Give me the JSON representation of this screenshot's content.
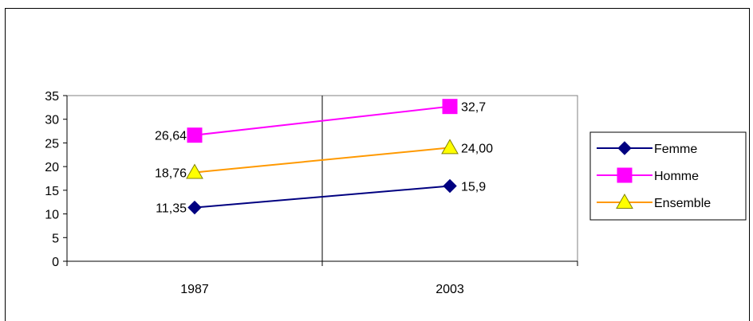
{
  "chart_data": {
    "type": "line",
    "title": "",
    "xlabel": "",
    "ylabel": "",
    "categories": [
      "1987",
      "2003"
    ],
    "ylim": [
      0,
      35
    ],
    "yticks": [
      "0",
      "5",
      "10",
      "15",
      "20",
      "25",
      "30",
      "35"
    ],
    "ytick_values": [
      0,
      5,
      10,
      15,
      20,
      25,
      30,
      35
    ],
    "grid": "vertical divider between categories",
    "legend_position": "right",
    "series": [
      {
        "name": "Femme",
        "values": [
          11.35,
          15.9
        ],
        "labels": [
          "11,35",
          "15,9"
        ],
        "color": "#000080",
        "marker_color": "#000080",
        "marker": "diamond"
      },
      {
        "name": "Homme",
        "values": [
          26.64,
          32.7
        ],
        "labels": [
          "26,64",
          "32,7"
        ],
        "color": "#ff00ff",
        "marker_color": "#ff00ff",
        "marker": "square"
      },
      {
        "name": "Ensemble",
        "values": [
          18.76,
          24.0
        ],
        "labels": [
          "18,76",
          "24,00"
        ],
        "color": "#ff9900",
        "marker_color": "#ffff00",
        "marker": "triangle"
      }
    ]
  }
}
